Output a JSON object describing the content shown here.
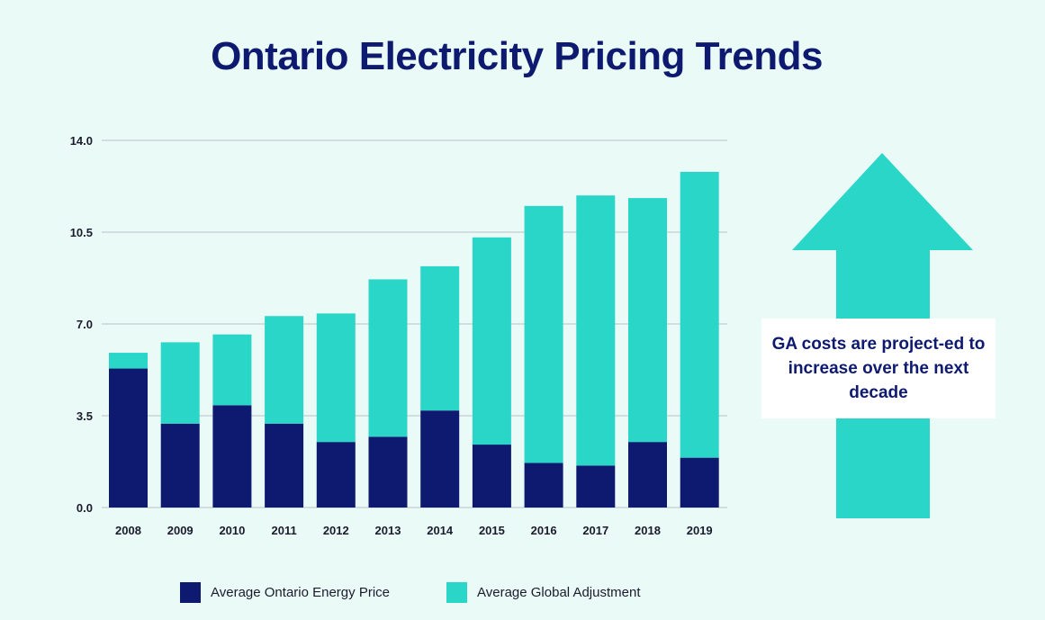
{
  "colors": {
    "background": "#eafaf7",
    "energy_price": "#0e1a70",
    "global_adjustment": "#2ad6c8",
    "title": "#0e1a70",
    "gridline": "#b7c3c9"
  },
  "chart_data": {
    "type": "bar",
    "stacked": true,
    "title": "Ontario Electricity Pricing Trends",
    "xlabel": "",
    "ylabel": "",
    "ylim": [
      0,
      14
    ],
    "yticks": [
      "0.0",
      "3.5",
      "7.0",
      "10.5",
      "14.0"
    ],
    "grid": true,
    "legend_position": "bottom",
    "categories": [
      "2008",
      "2009",
      "2010",
      "2011",
      "2012",
      "2013",
      "2014",
      "2015",
      "2016",
      "2017",
      "2018",
      "2019"
    ],
    "series": [
      {
        "name": "Average Ontario Energy Price",
        "values": [
          5.3,
          3.2,
          3.9,
          3.2,
          2.5,
          2.7,
          3.7,
          2.4,
          1.7,
          1.6,
          2.5,
          1.9
        ]
      },
      {
        "name": "Average Global Adjustment",
        "values": [
          0.6,
          3.1,
          2.7,
          4.1,
          4.9,
          6.0,
          5.5,
          7.9,
          9.8,
          10.3,
          9.3,
          10.9
        ]
      }
    ]
  },
  "callout": {
    "text": "GA costs are project-ed to increase over the next decade"
  },
  "icons": {
    "arrow": "up-arrow-icon"
  }
}
